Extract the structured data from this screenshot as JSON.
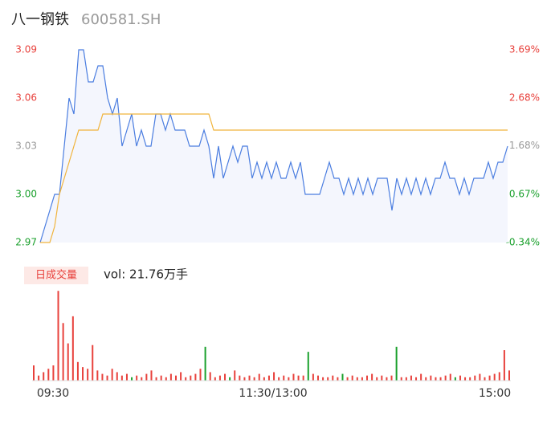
{
  "chart_data": {
    "type": "line",
    "title": "八一钢铁",
    "subtitle": "600581.SH",
    "ylim": [
      2.97,
      3.09
    ],
    "yticks": [
      2.97,
      3.03,
      3.06,
      3.09,
      {
        "value": 3,
        "label": "3.00"
      }
    ],
    "y2lim": [
      -0.34,
      3.69
    ],
    "y2ticks": [
      {
        "value": -0.34,
        "label": "-0.34%"
      },
      {
        "value": 0.67,
        "label": "0.67%"
      },
      {
        "value": 1.68,
        "label": "1.68%"
      },
      {
        "value": 2.68,
        "label": "2.68%"
      },
      {
        "value": 3.69,
        "label": "3.69%"
      }
    ],
    "x_labels": [
      "09:30",
      "11:30/13:00",
      "15:00"
    ],
    "series": [
      {
        "color": "#4a7de0",
        "values": [
          2.97,
          2.98,
          2.99,
          3.0,
          3.0,
          3.03,
          3.06,
          3.05,
          3.09,
          3.09,
          3.07,
          3.07,
          3.08,
          3.08,
          3.06,
          3.05,
          3.06,
          3.03,
          3.04,
          3.05,
          3.03,
          3.04,
          3.03,
          3.03,
          3.05,
          3.05,
          3.04,
          3.05,
          3.04,
          3.04,
          3.04,
          3.03,
          3.03,
          3.03,
          3.04,
          3.03,
          3.01,
          3.03,
          3.01,
          3.02,
          3.03,
          3.02,
          3.03,
          3.03,
          3.01,
          3.02,
          3.01,
          3.02,
          3.01,
          3.02,
          3.01,
          3.01,
          3.02,
          3.01,
          3.02,
          3.0,
          3.0,
          3.0,
          3.0,
          3.01,
          3.02,
          3.01,
          3.01,
          3.0,
          3.01,
          3.0,
          3.01,
          3.0,
          3.01,
          3.0,
          3.01,
          3.01,
          3.01,
          2.99,
          3.01,
          3.0,
          3.01,
          3.0,
          3.01,
          3.0,
          3.01,
          3.0,
          3.01,
          3.01,
          3.02,
          3.01,
          3.01,
          3.0,
          3.01,
          3.0,
          3.01,
          3.01,
          3.01,
          3.02,
          3.01,
          3.02,
          3.02,
          3.03
        ]
      },
      {
        "color": "#f0b43c",
        "values": [
          2.97,
          2.97,
          2.97,
          2.98,
          3.0,
          3.01,
          3.02,
          3.03,
          3.04,
          3.04,
          3.04,
          3.04,
          3.04,
          3.05,
          3.05,
          3.05,
          3.05,
          3.05,
          3.05,
          3.05,
          3.05,
          3.05,
          3.05,
          3.05,
          3.05,
          3.05,
          3.05,
          3.05,
          3.05,
          3.05,
          3.05,
          3.05,
          3.05,
          3.05,
          3.05,
          3.05,
          3.04,
          3.04,
          3.04,
          3.04,
          3.04,
          3.04,
          3.04,
          3.04,
          3.04,
          3.04,
          3.04,
          3.04,
          3.04,
          3.04,
          3.04,
          3.04,
          3.04,
          3.04,
          3.04,
          3.04,
          3.04,
          3.04,
          3.04,
          3.04,
          3.04,
          3.04,
          3.04,
          3.04,
          3.04,
          3.04,
          3.04,
          3.04,
          3.04,
          3.04,
          3.04,
          3.04,
          3.04,
          3.04,
          3.04,
          3.04,
          3.04,
          3.04,
          3.04,
          3.04,
          3.04,
          3.04,
          3.04,
          3.04,
          3.04,
          3.04,
          3.04,
          3.04,
          3.04,
          3.04,
          3.04,
          3.04,
          3.04,
          3.04,
          3.04,
          3.04,
          3.04,
          3.04
        ]
      }
    ],
    "volume": {
      "badge": "日成交量",
      "label": "vol: 21.76万手",
      "ylim": [
        0,
        110
      ],
      "color_up": "#e8413c",
      "color_down": "#1aa02c",
      "down": [
        20,
        35,
        40,
        56,
        63,
        74,
        86
      ],
      "values": [
        18,
        6,
        10,
        14,
        18,
        106,
        68,
        44,
        76,
        22,
        16,
        14,
        42,
        12,
        8,
        6,
        14,
        10,
        6,
        8,
        4,
        6,
        4,
        8,
        12,
        4,
        6,
        4,
        8,
        6,
        10,
        4,
        6,
        8,
        14,
        40,
        10,
        4,
        6,
        8,
        4,
        12,
        6,
        4,
        6,
        4,
        8,
        4,
        6,
        10,
        4,
        6,
        4,
        8,
        6,
        6,
        34,
        8,
        6,
        4,
        4,
        6,
        4,
        8,
        4,
        6,
        4,
        4,
        6,
        8,
        4,
        6,
        4,
        6,
        40,
        4,
        4,
        6,
        4,
        8,
        4,
        6,
        4,
        4,
        6,
        8,
        4,
        6,
        4,
        4,
        6,
        8,
        4,
        6,
        8,
        10,
        36,
        12
      ]
    }
  }
}
